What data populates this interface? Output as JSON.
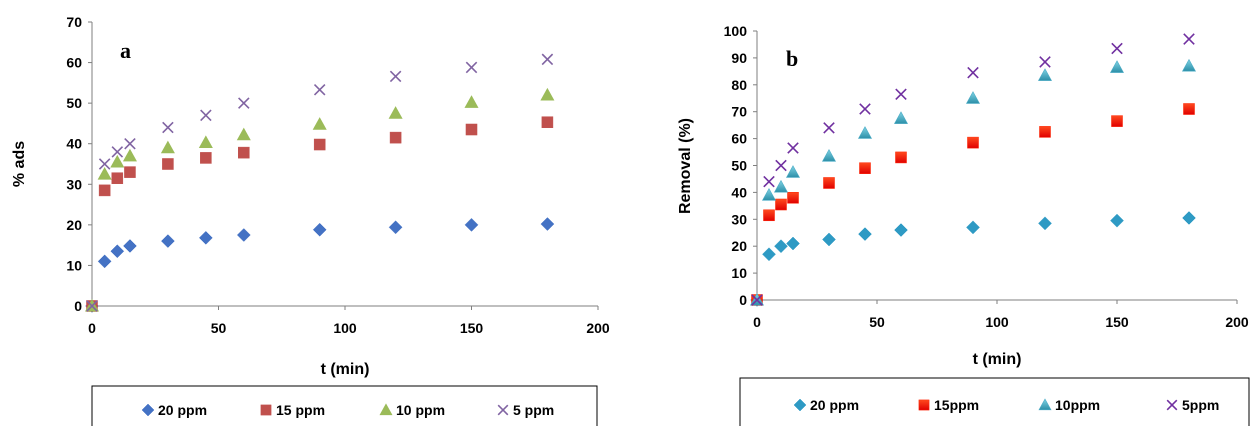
{
  "chart_data": [
    {
      "type": "scatter",
      "panel_label": "a",
      "xlabel": "t (min)",
      "ylabel": "% ads",
      "xlim": [
        0,
        200
      ],
      "ylim": [
        0,
        70
      ],
      "xticks": [
        0,
        50,
        100,
        150,
        200
      ],
      "yticks": [
        0,
        10,
        20,
        30,
        40,
        50,
        60,
        70
      ],
      "grid": false,
      "legend_position": "bottom",
      "x": [
        0,
        5,
        10,
        15,
        30,
        45,
        60,
        90,
        120,
        150,
        180
      ],
      "series": [
        {
          "name": "20 ppm",
          "marker": "diamond",
          "color": "#4472C4",
          "values": [
            0,
            11.0,
            13.5,
            14.8,
            16.0,
            16.8,
            17.5,
            18.8,
            19.4,
            20.0,
            20.2
          ]
        },
        {
          "name": "15 ppm",
          "marker": "square",
          "color": "#C0504D",
          "values": [
            0,
            28.5,
            31.5,
            33.0,
            35.0,
            36.5,
            37.8,
            39.8,
            41.5,
            43.5,
            45.3
          ]
        },
        {
          "name": "10 ppm",
          "marker": "triangle",
          "color": "#9BBB59",
          "values": [
            0,
            32.5,
            35.5,
            37.0,
            39.0,
            40.3,
            42.2,
            44.8,
            47.5,
            50.2,
            52.0
          ]
        },
        {
          "name": "5 ppm",
          "marker": "x",
          "color": "#8064A2",
          "values": [
            0,
            35.0,
            38.0,
            40.0,
            44.0,
            47.0,
            50.0,
            53.3,
            56.6,
            58.8,
            60.8
          ]
        }
      ]
    },
    {
      "type": "scatter",
      "panel_label": "b",
      "xlabel": "t (min)",
      "ylabel": "Removal (%)",
      "xlim": [
        0,
        200
      ],
      "ylim": [
        0,
        100
      ],
      "xticks": [
        0,
        50,
        100,
        150,
        200
      ],
      "yticks": [
        0,
        10,
        20,
        30,
        40,
        50,
        60,
        70,
        80,
        90,
        100
      ],
      "grid": false,
      "legend_position": "bottom",
      "x": [
        0,
        5,
        10,
        15,
        30,
        45,
        60,
        90,
        120,
        150,
        180
      ],
      "series": [
        {
          "name": "20 ppm",
          "marker": "diamond",
          "color": "#2E9AC4",
          "values": [
            0,
            17.0,
            20.0,
            21.0,
            22.5,
            24.5,
            26.0,
            27.0,
            28.5,
            29.5,
            30.5
          ]
        },
        {
          "name": "15ppm",
          "marker": "square",
          "color": "#FF2A0A",
          "values": [
            0,
            31.5,
            35.5,
            38.0,
            43.5,
            49.0,
            53.0,
            58.5,
            62.5,
            66.5,
            71.0
          ]
        },
        {
          "name": "10ppm",
          "marker": "triangle",
          "color": "#4BACC6",
          "values": [
            0,
            39.0,
            42.0,
            47.5,
            53.5,
            62.0,
            67.5,
            75.0,
            83.5,
            86.5,
            87.0
          ]
        },
        {
          "name": "5ppm",
          "marker": "x",
          "color": "#7030A0",
          "values": [
            0,
            44.0,
            50.0,
            56.5,
            64.0,
            71.0,
            76.5,
            84.5,
            88.5,
            93.5,
            97.0
          ]
        }
      ]
    }
  ]
}
